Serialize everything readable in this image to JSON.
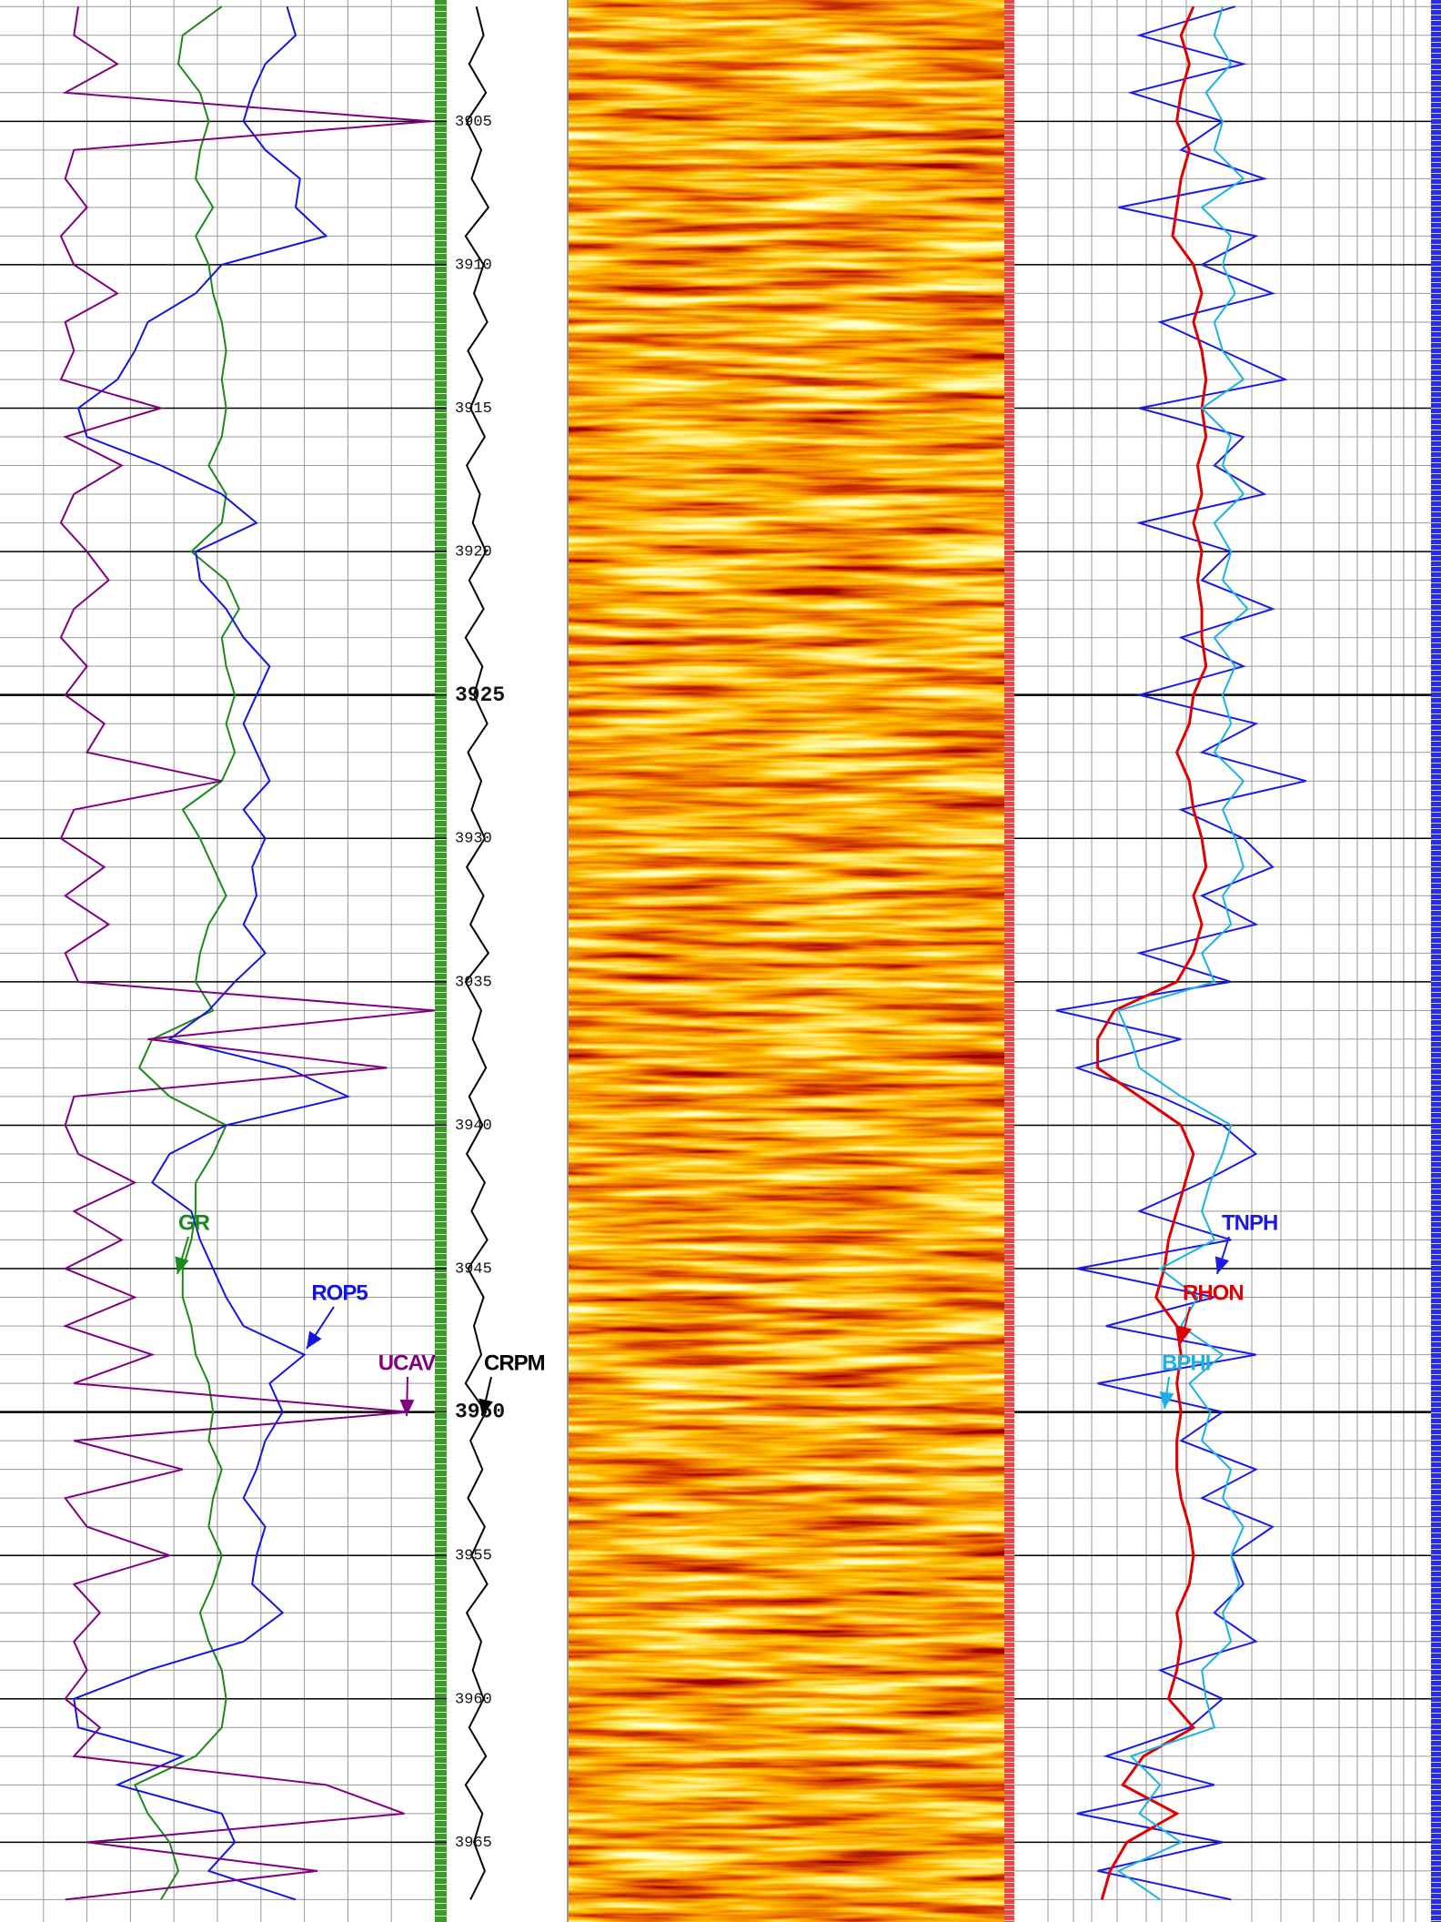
{
  "chart_data": {
    "type": "well_log",
    "ylim": [
      3900.77,
      3967.78
    ],
    "yticks": [
      3905,
      3910,
      3915,
      3920,
      3925,
      3930,
      3935,
      3940,
      3945,
      3950,
      3955,
      3960,
      3965
    ],
    "depths": [
      3901,
      3902,
      3903,
      3904,
      3905,
      3906,
      3907,
      3908,
      3909,
      3910,
      3911,
      3912,
      3913,
      3914,
      3915,
      3916,
      3917,
      3918,
      3919,
      3920,
      3921,
      3922,
      3923,
      3924,
      3925,
      3926,
      3927,
      3928,
      3929,
      3930,
      3931,
      3932,
      3933,
      3934,
      3935,
      3936,
      3937,
      3938,
      3939,
      3940,
      3941,
      3942,
      3943,
      3944,
      3945,
      3946,
      3947,
      3948,
      3949,
      3950,
      3951,
      3952,
      3953,
      3954,
      3955,
      3956,
      3957,
      3958,
      3959,
      3960,
      3961,
      3962,
      3963,
      3964,
      3965,
      3966,
      3967
    ],
    "tracks": [
      {
        "xlim": [
          0,
          100
        ],
        "series": [
          {
            "name": "GR",
            "color": "#1a8a1a",
            "values": [
              51,
              42,
              41,
              46,
              48,
              46,
              45,
              49,
              45,
              48,
              49,
              51,
              52,
              51,
              52,
              51,
              48,
              52,
              51,
              44,
              52,
              55,
              51,
              52,
              54,
              52,
              54,
              51,
              42,
              46,
              49,
              52,
              48,
              46,
              45,
              49,
              35,
              32,
              39,
              52,
              49,
              45,
              45,
              44,
              42,
              42,
              44,
              45,
              48,
              49,
              48,
              51,
              49,
              48,
              51,
              49,
              46,
              48,
              51,
              52,
              51,
              45,
              31,
              34,
              39,
              41,
              37
            ]
          },
          {
            "name": "ROP5",
            "color": "#1414e0",
            "values": [
              66,
              68,
              61,
              58,
              56,
              61,
              69,
              68,
              75,
              51,
              45,
              34,
              31,
              27,
              18,
              20,
              37,
              51,
              59,
              45,
              46,
              52,
              56,
              62,
              59,
              56,
              59,
              62,
              56,
              61,
              58,
              59,
              56,
              61,
              54,
              48,
              39,
              66,
              80,
              52,
              39,
              35,
              44,
              46,
              49,
              52,
              56,
              70,
              62,
              65,
              61,
              59,
              56,
              61,
              59,
              58,
              65,
              56,
              34,
              17,
              18,
              42,
              27,
              51,
              54,
              48,
              68
            ]
          },
          {
            "name": "UCAV",
            "color": "#800080",
            "values": [
              18,
              17,
              27,
              15,
              99,
              17,
              15,
              20,
              14,
              17,
              27,
              15,
              17,
              14,
              37,
              15,
              28,
              17,
              14,
              20,
              25,
              17,
              14,
              20,
              15,
              24,
              20,
              51,
              17,
              14,
              24,
              15,
              25,
              15,
              18,
              100,
              34,
              89,
              17,
              15,
              18,
              31,
              17,
              28,
              15,
              31,
              15,
              35,
              17,
              94,
              17,
              42,
              15,
              20,
              39,
              17,
              23,
              17,
              20,
              15,
              23,
              17,
              75,
              93,
              20,
              73,
              15
            ]
          }
        ]
      },
      {
        "xlim": [
          0,
          100
        ],
        "series": [
          {
            "name": "CRPM",
            "color": "#000000",
            "values": [
              24,
              30,
              18,
              32,
              16,
              28,
              20,
              34,
              15,
              30,
              22,
              33,
              17,
              29,
              19,
              31,
              16,
              27,
              21,
              32,
              18,
              30,
              15,
              29,
              22,
              33,
              17,
              28,
              20,
              31,
              16,
              30,
              19,
              34,
              15,
              28,
              21,
              32,
              18,
              29,
              16,
              31,
              20,
              33,
              17,
              30,
              22,
              28,
              15,
              32,
              19,
              29,
              17,
              31,
              20,
              33,
              16,
              28,
              21,
              30,
              18,
              32,
              15,
              29,
              22,
              31,
              19
            ]
          }
        ]
      },
      {
        "xlim": [
          0,
          100
        ],
        "series": [
          {
            "name": "TNPH",
            "color": "#1a1ae6",
            "values": [
              53,
              30,
              55,
              28,
              50,
              40,
              60,
              25,
              58,
              45,
              62,
              35,
              50,
              65,
              30,
              55,
              48,
              60,
              30,
              52,
              45,
              62,
              40,
              55,
              30,
              58,
              45,
              70,
              40,
              55,
              62,
              45,
              58,
              30,
              52,
              10,
              40,
              15,
              35,
              50,
              58,
              45,
              30,
              52,
              15,
              48,
              22,
              58,
              20,
              50,
              40,
              58,
              45,
              62,
              52,
              55,
              48,
              58,
              35,
              50,
              42,
              22,
              48,
              15,
              50,
              20,
              52
            ]
          },
          {
            "name": "RHON",
            "color": "#e00000",
            "values": [
              43,
              40,
              42,
              40,
              39,
              42,
              40,
              39,
              38,
              43,
              45,
              43,
              45,
              46,
              45,
              46,
              44,
              45,
              43,
              45,
              44,
              45,
              45,
              46,
              43,
              42,
              39,
              42,
              43,
              45,
              46,
              43,
              45,
              43,
              39,
              24,
              20,
              20,
              30,
              40,
              43,
              41,
              39,
              37,
              36,
              34,
              39,
              40,
              39,
              40,
              39,
              39,
              40,
              42,
              43,
              42,
              39,
              40,
              39,
              37,
              43,
              31,
              26,
              39,
              27,
              23,
              21
            ]
          },
          {
            "name": "BPHI",
            "color": "#1ab2e6",
            "values": [
              50,
              48,
              52,
              46,
              50,
              48,
              55,
              45,
              52,
              50,
              53,
              48,
              50,
              55,
              45,
              52,
              50,
              55,
              48,
              52,
              50,
              56,
              48,
              53,
              50,
              52,
              48,
              55,
              50,
              53,
              55,
              50,
              52,
              45,
              48,
              25,
              28,
              30,
              40,
              52,
              50,
              47,
              45,
              48,
              35,
              44,
              40,
              50,
              42,
              47,
              45,
              52,
              50,
              55,
              52,
              54,
              50,
              52,
              45,
              46,
              48,
              28,
              35,
              30,
              40,
              25,
              35
            ]
          }
        ]
      }
    ]
  }
}
